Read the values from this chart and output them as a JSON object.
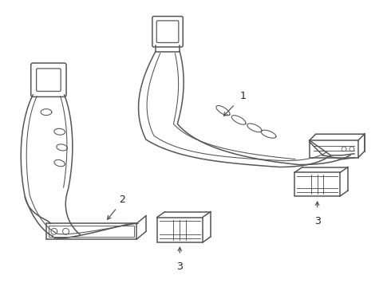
{
  "background_color": "#ffffff",
  "line_color": "#555555",
  "line_width": 1.1,
  "label_fontsize": 9,
  "fig_width": 4.9,
  "fig_height": 3.6,
  "dpi": 100
}
